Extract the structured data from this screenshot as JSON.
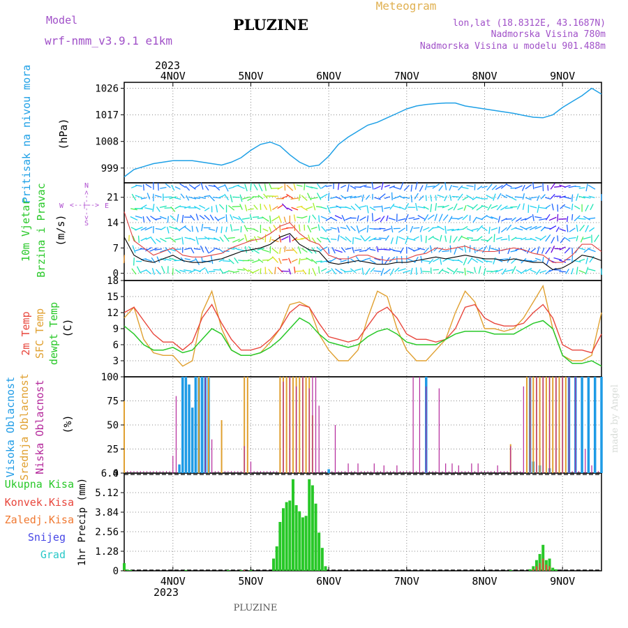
{
  "header": {
    "model_label": "Model",
    "model_name": "wrf-nmm_v3.9.1 e1km",
    "station": "PLUZINE",
    "product": "Meteogram",
    "coords": "lon,lat (18.8312E, 43.1687N)",
    "elevation": "Nadmorska Visina 780m",
    "model_elevation": "Nadmorska Visina u modelu 901.488m",
    "footer_station": "PLUZINE",
    "watermark": "made by Angel"
  },
  "colors": {
    "pressure": "#1ea0e6",
    "temp2m": "#e8463c",
    "sfc": "#e0a030",
    "dew": "#28c828",
    "high_cloud": "#1e9be6",
    "mid_cloud": "#e0a030",
    "low_cloud": "#b4289b",
    "total_precip": "#28c828",
    "conv_precip": "#e8463c",
    "frz_precip": "#f07830",
    "snow": "#4646e6",
    "hail": "#28c8c8",
    "header_purple": "#a050c8",
    "header_gold": "#e0b050"
  },
  "time_axis": {
    "year_label": "2023",
    "days": [
      "4NOV",
      "5NOV",
      "6NOV",
      "7NOV",
      "8NOV",
      "9NOV"
    ],
    "start_hour": -15,
    "end_hour": 132
  },
  "panels": {
    "pressure": {
      "label1": "Pritisak na nivou mora",
      "unit": "(hPa)",
      "ticks": [
        "999",
        "1008",
        "1017",
        "1026"
      ]
    },
    "wind": {
      "label1": "10m Vjetar",
      "label2": "Brzina i Pravac",
      "unit": "(m/s)",
      "ticks": [
        "0",
        "7",
        "14",
        "21"
      ],
      "compass_n": "N",
      "compass_s": "S",
      "compass_w": "W",
      "compass_e": "E",
      "compass_arrow_h": "<--|-->",
      "compass_arrow_v": "<--|-->"
    },
    "temp": {
      "label1": "2m Temp",
      "label2": "SFC Temp",
      "label3": "dewpt Temp",
      "unit": "(C)",
      "ticks": [
        "3",
        "6",
        "9",
        "12",
        "15",
        "18"
      ]
    },
    "cloud": {
      "label1": "Visoka Oblacnost",
      "label2": "Srednja Oblacnost",
      "label3": "Niska Oblacnost",
      "unit": "(%)",
      "ticks": [
        "0",
        "25",
        "50",
        "75",
        "100"
      ]
    },
    "precip": {
      "legend": [
        "Ukupna Kisa",
        "Konvek.Kisa",
        "Zaledj.Kisa",
        "Snijeg",
        "Grad"
      ],
      "unit": "1hr Precip (mm)",
      "ticks": [
        "0",
        "1.28",
        "2.56",
        "3.84",
        "5.12",
        "6.4"
      ]
    }
  },
  "chart_data": [
    {
      "type": "line",
      "title": "Pritisak na nivou mora",
      "ylabel": "(hPa)",
      "ylim": [
        994,
        1028
      ],
      "x_unit": "hours after 4NOV 00:00",
      "x": [
        -15,
        -12,
        -9,
        -6,
        -3,
        0,
        3,
        6,
        9,
        12,
        15,
        18,
        21,
        24,
        27,
        30,
        33,
        36,
        39,
        42,
        45,
        48,
        51,
        54,
        57,
        60,
        63,
        66,
        69,
        72,
        75,
        78,
        81,
        84,
        87,
        90,
        93,
        96,
        99,
        102,
        105,
        108,
        111,
        114,
        117,
        120,
        123,
        126,
        129,
        132
      ],
      "series": [
        {
          "name": "Pritisak",
          "values": [
            996,
            998.5,
            999.5,
            1000.5,
            1001,
            1001.5,
            1001.5,
            1001.5,
            1001,
            1000.5,
            1000,
            1001,
            1002.5,
            1005,
            1007,
            1007.8,
            1006.5,
            1003.5,
            1001,
            999.5,
            1000,
            1003,
            1007,
            1009.5,
            1011.5,
            1013.5,
            1014.5,
            1016,
            1017.5,
            1019,
            1020,
            1020.5,
            1020.8,
            1021,
            1021,
            1020,
            1019.5,
            1019,
            1018.5,
            1018,
            1017.5,
            1016.8,
            1016.2,
            1016,
            1017,
            1019.5,
            1021.5,
            1023.5,
            1026,
            1024
          ]
        }
      ]
    },
    {
      "type": "line",
      "title": "10m Vjetar",
      "ylabel": "(m/s)",
      "ylim": [
        -2,
        25
      ],
      "x": [
        -15,
        -12,
        -9,
        -6,
        -3,
        0,
        3,
        6,
        9,
        12,
        15,
        18,
        21,
        24,
        27,
        30,
        33,
        36,
        39,
        42,
        45,
        48,
        51,
        54,
        57,
        60,
        63,
        66,
        69,
        72,
        75,
        78,
        81,
        84,
        87,
        90,
        93,
        96,
        99,
        102,
        105,
        108,
        111,
        114,
        117,
        120,
        123,
        126,
        129,
        132
      ],
      "series": [
        {
          "name": "brzina",
          "values": [
            10,
            5,
            3.5,
            3,
            4,
            5,
            3.5,
            3,
            3,
            3.5,
            4,
            5,
            6,
            6.5,
            7,
            8,
            10,
            11,
            8,
            6.5,
            6,
            3,
            2.5,
            3,
            3.5,
            3,
            2.5,
            2.5,
            3,
            3,
            3.5,
            4,
            4.5,
            4,
            4.5,
            5,
            4.5,
            4,
            4,
            3.5,
            4,
            3.5,
            3,
            3,
            1,
            1.5,
            3,
            5,
            4.5,
            3.5
          ]
        },
        {
          "name": "udari",
          "values": [
            17,
            9,
            7,
            5,
            6,
            7,
            5,
            4.5,
            4.5,
            5,
            5.5,
            7,
            8,
            9,
            9.5,
            11,
            13,
            14,
            11,
            9,
            8,
            5,
            4,
            4,
            5,
            5,
            4,
            3.5,
            4,
            4,
            5,
            5.5,
            7,
            6.5,
            7,
            7.5,
            6.5,
            6,
            6,
            6.5,
            7,
            6.5,
            5.5,
            5,
            3,
            3,
            5,
            8,
            8,
            6
          ]
        }
      ]
    },
    {
      "type": "line",
      "title": "2m Temp / SFC Temp / dewpt Temp",
      "ylabel": "(C)",
      "ylim": [
        0,
        18
      ],
      "x": [
        -15,
        -12,
        -9,
        -6,
        -3,
        0,
        3,
        6,
        9,
        12,
        15,
        18,
        21,
        24,
        27,
        30,
        33,
        36,
        39,
        42,
        45,
        48,
        51,
        54,
        57,
        60,
        63,
        66,
        69,
        72,
        75,
        78,
        81,
        84,
        87,
        90,
        93,
        96,
        99,
        102,
        105,
        108,
        111,
        114,
        117,
        120,
        123,
        126,
        129,
        132
      ],
      "series": [
        {
          "name": "2m Temp",
          "values": [
            12,
            13,
            10.5,
            8,
            6.5,
            6.5,
            5,
            6.5,
            11,
            13.5,
            10,
            7,
            5,
            5,
            5.5,
            7,
            9,
            12,
            13.5,
            13,
            10,
            7.5,
            7,
            6.5,
            7,
            9.5,
            12,
            13,
            11,
            8,
            7,
            7,
            6.5,
            7,
            9,
            13,
            13.5,
            11,
            10,
            9.5,
            9.5,
            10,
            12,
            13.5,
            11,
            6,
            5,
            5,
            4.5,
            8
          ]
        },
        {
          "name": "SFC Temp",
          "values": [
            11,
            13,
            7,
            4.5,
            4,
            4,
            2,
            3,
            12,
            16,
            9,
            5,
            4,
            4,
            4.5,
            6.5,
            9,
            13.5,
            14,
            13,
            8,
            5,
            3,
            3,
            5,
            11,
            16,
            15,
            9,
            5,
            3,
            3,
            5,
            7,
            12,
            16,
            14,
            9,
            9,
            8.5,
            9,
            11,
            14,
            17,
            9,
            4,
            3,
            3,
            4,
            12
          ]
        },
        {
          "name": "dewpt Temp",
          "values": [
            9.5,
            8,
            6,
            5,
            5,
            5.5,
            4.5,
            5,
            7,
            9,
            8,
            5,
            4,
            4,
            4.5,
            5.5,
            7,
            9,
            11,
            10,
            8,
            6.5,
            6,
            5.5,
            6,
            7.5,
            8.5,
            9,
            8,
            6.5,
            6,
            6,
            6,
            7,
            8,
            8.5,
            8.5,
            8.5,
            8,
            8,
            8,
            9,
            10,
            10.5,
            9,
            4,
            2.5,
            2.5,
            3,
            2
          ]
        }
      ]
    },
    {
      "type": "bar",
      "title": "Oblacnost",
      "ylabel": "(%)",
      "ylim": [
        0,
        100
      ],
      "series": [
        {
          "name": "Visoka Oblacnost",
          "x": [
            2,
            3,
            4,
            5,
            6,
            7,
            8,
            9,
            10,
            11,
            48,
            78,
            110,
            111,
            113,
            116,
            122,
            124,
            126,
            128,
            130,
            132
          ],
          "values": [
            9,
            100,
            100,
            92,
            68,
            100,
            100,
            100,
            100,
            100,
            4,
            100,
            100,
            12,
            8,
            5,
            100,
            100,
            100,
            100,
            100,
            100
          ]
        },
        {
          "name": "Srednja Oblacnost",
          "x": [
            -15,
            8,
            11,
            15,
            22,
            23,
            33,
            34,
            35,
            36,
            37,
            38,
            39,
            40,
            41,
            42,
            43,
            104,
            109,
            110,
            111,
            112,
            113,
            114,
            115,
            116,
            117,
            118,
            119,
            120,
            121
          ],
          "values": [
            75,
            100,
            100,
            55,
            100,
            100,
            100,
            100,
            100,
            100,
            100,
            100,
            100,
            100,
            100,
            100,
            60,
            30,
            100,
            100,
            100,
            100,
            100,
            100,
            100,
            100,
            100,
            100,
            100,
            100,
            100
          ]
        },
        {
          "name": "Niska Oblacnost",
          "x": [
            0,
            1,
            10,
            12,
            22,
            24,
            34,
            36,
            38,
            40,
            42,
            43,
            44,
            45,
            50,
            54,
            57,
            62,
            65,
            69,
            74,
            76,
            78,
            82,
            84,
            86,
            88,
            92,
            94,
            100,
            104,
            108,
            110,
            112,
            114,
            116,
            118,
            120,
            122,
            124,
            127,
            129
          ],
          "values": [
            18,
            80,
            100,
            35,
            28,
            12,
            95,
            100,
            90,
            100,
            88,
            100,
            100,
            70,
            50,
            10,
            10,
            10,
            8,
            8,
            100,
            100,
            90,
            88,
            10,
            10,
            8,
            10,
            10,
            8,
            28,
            90,
            100,
            100,
            100,
            100,
            100,
            100,
            100,
            100,
            25,
            8
          ]
        }
      ]
    },
    {
      "type": "bar",
      "title": "1hr Precip",
      "ylabel": "1hr Precip (mm)",
      "ylim": [
        0,
        6.4
      ],
      "series": [
        {
          "name": "Ukupna Kisa",
          "x": [
            -15,
            -14,
            -13,
            4,
            17,
            21,
            24,
            31,
            32,
            33,
            34,
            35,
            36,
            37,
            38,
            39,
            40,
            41,
            42,
            43,
            44,
            45,
            46,
            47,
            104,
            110,
            111,
            112,
            113,
            114,
            115,
            116,
            117,
            118
          ],
          "values": [
            0.5,
            0.08,
            0.05,
            0.05,
            0.05,
            0.05,
            0.05,
            0.8,
            1.6,
            3.2,
            4.1,
            4.5,
            4.6,
            6.0,
            4.3,
            3.9,
            3.5,
            3.6,
            6.0,
            5.6,
            4.4,
            2.5,
            1.5,
            0.3,
            0.05,
            0.1,
            0.3,
            0.7,
            1.1,
            1.7,
            0.7,
            0.8,
            0.2,
            0.1
          ]
        },
        {
          "name": "Konvek.Kisa",
          "x": [
            -15,
            22,
            111,
            112,
            113,
            114,
            115,
            116
          ],
          "values": [
            0.05,
            0.05,
            0.1,
            0.3,
            0.5,
            0.8,
            0.4,
            0.3
          ]
        }
      ]
    }
  ]
}
